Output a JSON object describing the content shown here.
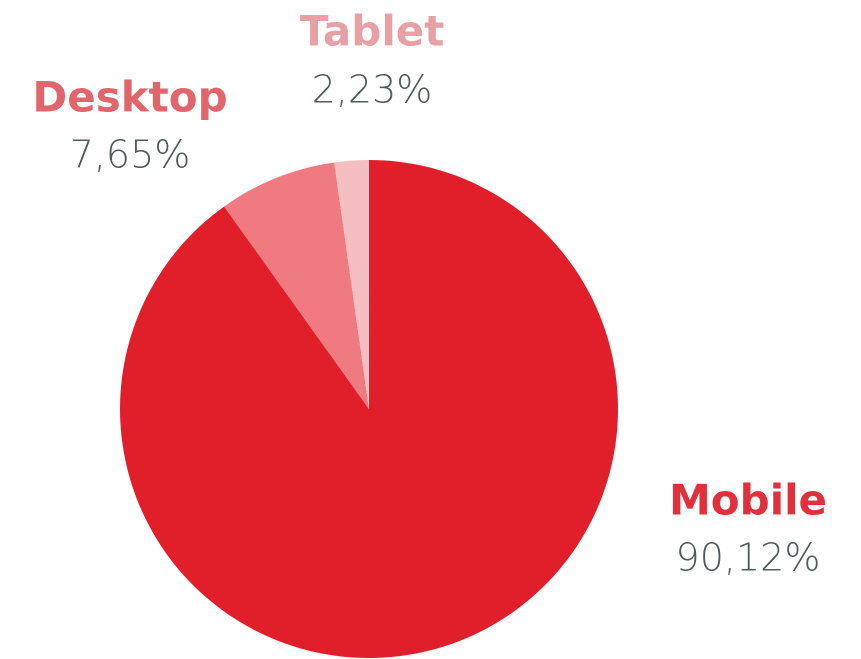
{
  "chart_data": {
    "type": "pie",
    "categories": [
      "Mobile",
      "Desktop",
      "Tablet"
    ],
    "values": [
      90.12,
      7.65,
      2.23
    ],
    "value_labels": [
      "90,12%",
      "7,65%",
      "2,23%"
    ],
    "colors": [
      "#e01f2a",
      "#ef7a80",
      "#f5bfc2"
    ],
    "label_colors": [
      "#e0303b",
      "#e2656c",
      "#e9a0a5"
    ]
  }
}
